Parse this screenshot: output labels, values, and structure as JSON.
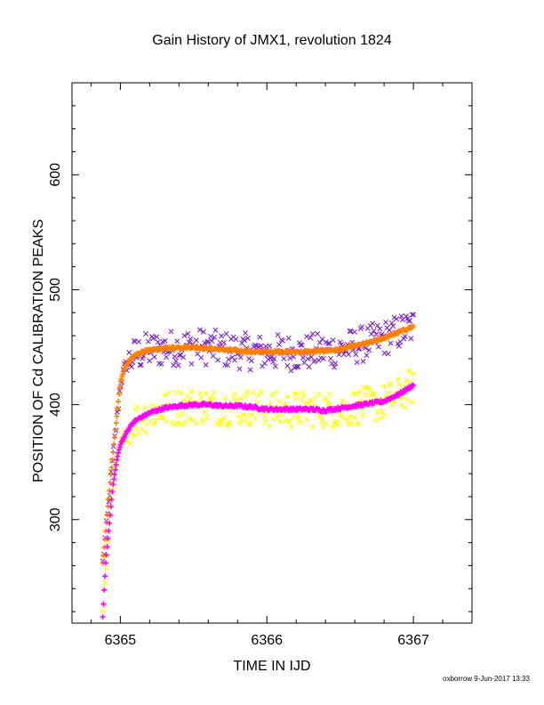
{
  "chart_data": {
    "type": "scatter",
    "title": "Gain History of JMX1, revolution 1824",
    "xlabel": "TIME IN IJD",
    "ylabel": "POSITION OF Cd CALIBRATION PEAKS",
    "xlim": [
      6364.67,
      6367.4
    ],
    "ylim": [
      210,
      680
    ],
    "xticks": [
      "6365",
      "6366",
      "6367"
    ],
    "yticks": [
      "300",
      "400",
      "500",
      "600"
    ],
    "grid": false,
    "legend": "none",
    "series": [
      {
        "marker": "x",
        "color": "#7d26cd",
        "x": [
          6364.88,
          6364.92,
          6364.95,
          6364.98,
          6365.0,
          6365.03,
          6365.06,
          6365.1,
          6365.15,
          6365.2,
          6365.3,
          6365.4,
          6365.5,
          6365.6,
          6365.7,
          6365.8,
          6365.9,
          6366.0,
          6366.1,
          6366.2,
          6366.3,
          6366.4,
          6366.5,
          6366.6,
          6366.7,
          6366.8,
          6366.9,
          6367.0
        ],
        "y": [
          262,
          312,
          355,
          392,
          418,
          432,
          438,
          443,
          446,
          447,
          449,
          450,
          451,
          450,
          448,
          447,
          446,
          445,
          446,
          445,
          446,
          447,
          448,
          451,
          454,
          458,
          463,
          468
        ]
      },
      {
        "marker": "+",
        "color": "#ff7f00",
        "x": [
          6364.88,
          6364.9,
          6364.92,
          6364.95,
          6364.98,
          6365.0,
          6365.03,
          6365.06,
          6365.1,
          6365.15,
          6365.2,
          6365.3,
          6365.4,
          6365.5,
          6365.6,
          6365.7,
          6365.8,
          6365.9,
          6366.0,
          6366.1,
          6366.2,
          6366.3,
          6366.4,
          6366.5,
          6366.6,
          6366.7,
          6366.8,
          6366.9,
          6367.0
        ],
        "y": [
          262,
          290,
          318,
          358,
          395,
          420,
          432,
          438,
          443,
          446,
          447,
          449,
          450,
          450,
          449,
          448,
          447,
          446,
          446,
          446,
          446,
          446,
          447,
          448,
          451,
          454,
          458,
          463,
          468
        ]
      },
      {
        "marker": "x",
        "color": "#ffff00",
        "x": [
          6364.88,
          6364.92,
          6364.95,
          6364.98,
          6365.0,
          6365.05,
          6365.1,
          6365.2,
          6365.3,
          6365.4,
          6365.5,
          6365.6,
          6365.7,
          6365.8,
          6365.9,
          6366.0,
          6366.1,
          6366.2,
          6366.3,
          6366.4,
          6366.5,
          6366.6,
          6366.7,
          6366.8,
          6366.9,
          6367.0
        ],
        "y": [
          215,
          285,
          325,
          352,
          365,
          378,
          386,
          393,
          396,
          398,
          399,
          399,
          398,
          398,
          398,
          396,
          395,
          396,
          396,
          396,
          395,
          398,
          400,
          402,
          408,
          417
        ]
      },
      {
        "marker": "+",
        "color": "#ff00ff",
        "x": [
          6364.88,
          6364.9,
          6364.92,
          6364.95,
          6364.98,
          6365.0,
          6365.05,
          6365.1,
          6365.2,
          6365.3,
          6365.4,
          6365.5,
          6365.6,
          6365.7,
          6365.8,
          6365.9,
          6366.0,
          6366.1,
          6366.2,
          6366.3,
          6366.4,
          6366.5,
          6366.6,
          6366.7,
          6366.8,
          6366.9,
          6367.0
        ],
        "y": [
          215,
          262,
          290,
          330,
          355,
          365,
          378,
          386,
          393,
          397,
          399,
          400,
          400,
          399,
          399,
          398,
          396,
          396,
          396,
          396,
          395,
          397,
          399,
          401,
          403,
          409,
          417
        ]
      }
    ]
  },
  "footer": "oxborrow  9-Jun-2017 13:33"
}
